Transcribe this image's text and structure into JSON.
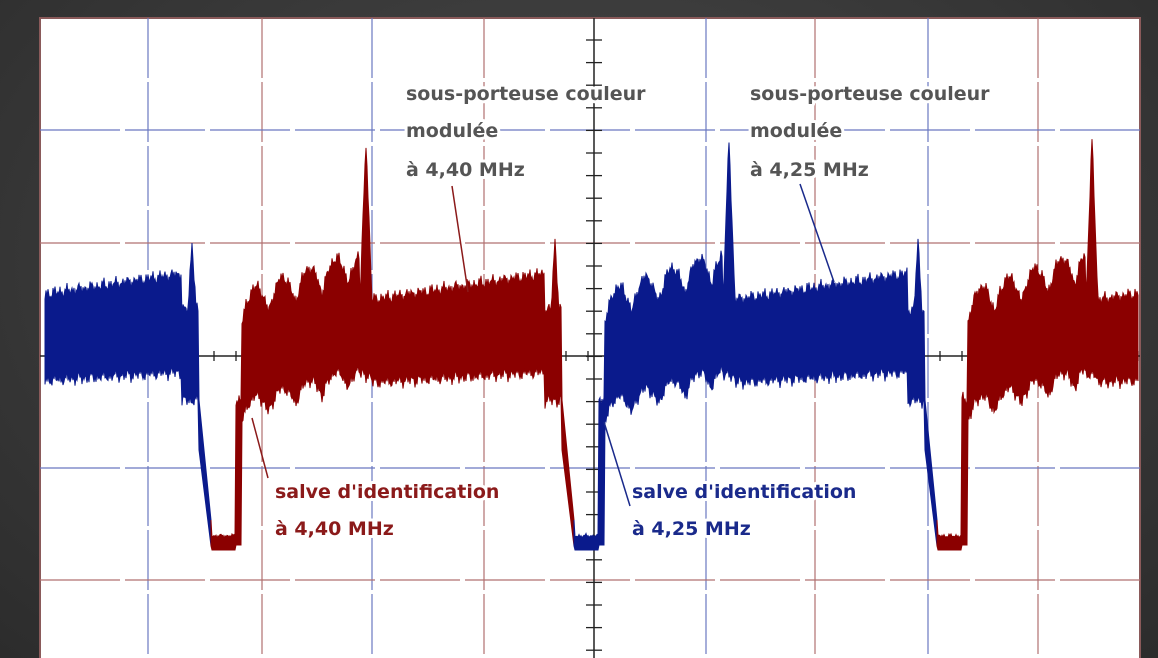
{
  "annotations": [
    {
      "lines": [
        "sous-porteuse couleur",
        "modulée",
        "à 4,40 MHz"
      ]
    },
    {
      "lines": [
        "sous-porteuse couleur",
        "modulée",
        "à 4,25 MHz"
      ]
    },
    {
      "lines": [
        "salve d'identification",
        "à 4,40 MHz"
      ]
    },
    {
      "lines": [
        "salve d'identification",
        "à 4,25 MHz"
      ]
    }
  ]
}
